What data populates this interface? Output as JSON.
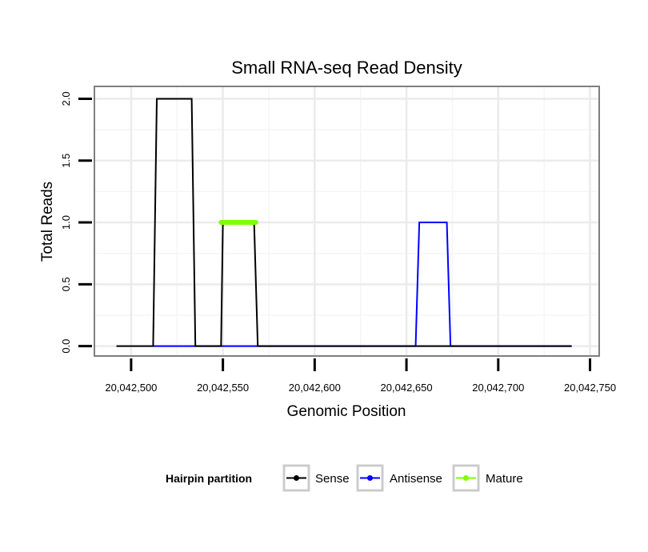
{
  "chart_data": {
    "type": "line",
    "title": "Small RNA-seq Read Density",
    "xlabel": "Genomic Position",
    "ylabel": "Total Reads",
    "xlim": [
      20042480,
      20042755
    ],
    "ylim": [
      -0.08,
      2.1
    ],
    "x_ticks": [
      20042500,
      20042550,
      20042600,
      20042650,
      20042700,
      20042750
    ],
    "x_tick_labels": [
      "20,042,500",
      "20,042,550",
      "20,042,600",
      "20,042,650",
      "20,042,700",
      "20,042,750"
    ],
    "y_ticks": [
      0,
      0.5,
      1,
      1.5,
      2
    ],
    "y_tick_labels": [
      "0.0",
      "0.5",
      "1.0",
      "1.5",
      "2.0"
    ],
    "grid": true,
    "legend": {
      "title": "Hairpin partition",
      "position": "bottom",
      "entries": [
        "Sense",
        "Antisense",
        "Mature"
      ]
    },
    "series": [
      {
        "name": "Sense",
        "color": "#000000",
        "x": [
          20042492,
          20042512,
          20042514,
          20042533,
          20042535,
          20042549,
          20042550,
          20042567,
          20042569,
          20042740
        ],
        "y": [
          0,
          0,
          2,
          2,
          0,
          0,
          1,
          1,
          0,
          0
        ]
      },
      {
        "name": "Antisense",
        "color": "#0000ff",
        "x": [
          20042512,
          20042570,
          20042655,
          20042657,
          20042672,
          20042674,
          20042740
        ],
        "y": [
          0,
          0,
          0,
          1,
          1,
          0,
          0
        ]
      },
      {
        "name": "Mature",
        "color": "#7fff00",
        "x": [
          20042549,
          20042568
        ],
        "y": [
          1,
          1
        ]
      }
    ]
  }
}
